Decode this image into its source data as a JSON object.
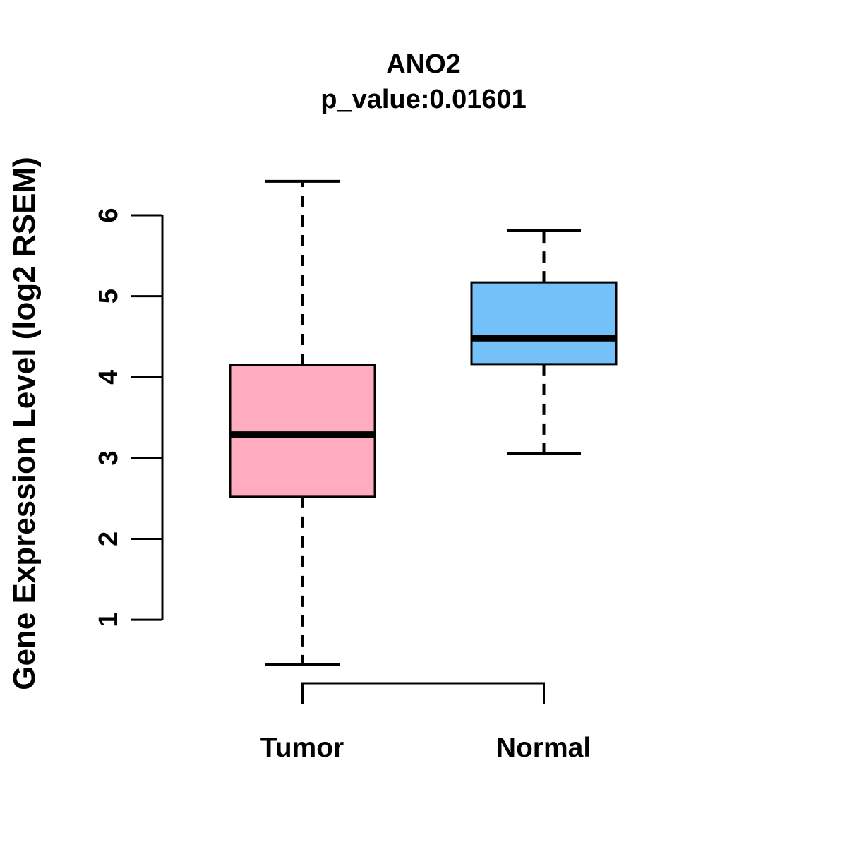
{
  "chart_data": {
    "type": "boxplot",
    "title": "ANO2",
    "subtitle": "p_value:0.01601",
    "ylabel": "Gene Expression Level (log2 RSEM)",
    "xlabel": "",
    "ylim": [
      1,
      6
    ],
    "y_ticks": [
      1,
      2,
      3,
      4,
      5,
      6
    ],
    "grid": false,
    "legend": "none",
    "groups": [
      {
        "label": "Tumor",
        "box_color": "#FFADBE",
        "whisker_low": 0.45,
        "q1": 2.52,
        "median": 3.29,
        "q3": 4.15,
        "whisker_high": 6.42
      },
      {
        "label": "Normal",
        "box_color": "#74C0F8",
        "whisker_low": 3.06,
        "q1": 4.16,
        "median": 4.48,
        "q3": 5.17,
        "whisker_high": 5.81
      }
    ],
    "line_color": "#000000",
    "whisker_style": "dashed"
  }
}
